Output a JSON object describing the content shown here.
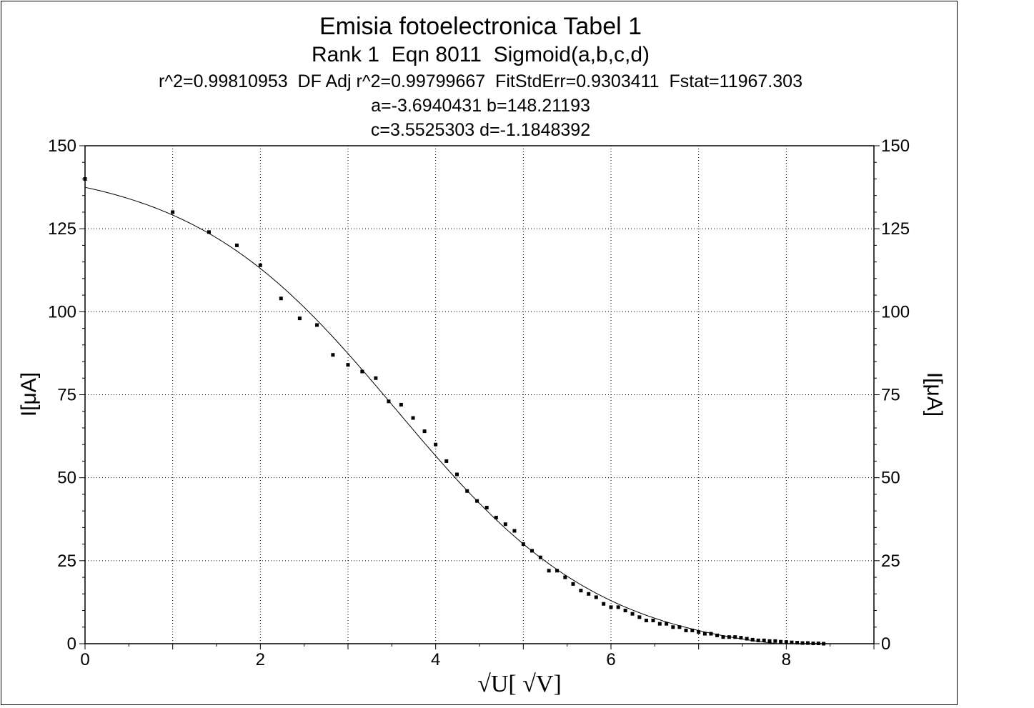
{
  "chart_data": {
    "type": "scatter",
    "title": "Emisia fotoelectronica Tabel 1",
    "subtitle": "Rank 1  Eqn 8011  Sigmoid(a,b,c,d)",
    "stats_line": "r^2=0.99810953  DF Adj r^2=0.99799667  FitStdErr=0.9303411  Fstat=11967.303",
    "params_line_1": "a=-3.6940431 b=148.21193",
    "params_line_2": "c=3.5525303 d=-1.1848392",
    "xlabel": "√U[ √V]",
    "ylabel": "I[μA]",
    "ylabel_right": "I[μA]",
    "xlim": [
      0,
      9
    ],
    "ylim": [
      0,
      150
    ],
    "x_ticks": [
      0,
      2,
      4,
      6,
      8
    ],
    "x_tick_labels": [
      "0",
      "2",
      "4",
      "6",
      "8"
    ],
    "y_ticks": [
      0,
      25,
      50,
      75,
      100,
      125,
      150
    ],
    "y_tick_labels": [
      "0",
      "25",
      "50",
      "75",
      "100",
      "125",
      "150"
    ],
    "grid": true,
    "fit": {
      "equation": "sigmoid",
      "a": -3.6940431,
      "b": 148.21193,
      "c": 3.5525303,
      "d": -1.1848392
    },
    "points": {
      "x": [
        0,
        1,
        1.414,
        1.732,
        2,
        2.236,
        2.449,
        2.646,
        2.828,
        3,
        3.162,
        3.317,
        3.464,
        3.606,
        3.742,
        3.873,
        4,
        4.123,
        4.243,
        4.359,
        4.472,
        4.583,
        4.69,
        4.796,
        4.899,
        5,
        5.099,
        5.196,
        5.292,
        5.385,
        5.477,
        5.568,
        5.657,
        5.745,
        5.831,
        5.916,
        6,
        6.083,
        6.164,
        6.245,
        6.325,
        6.403,
        6.481,
        6.557,
        6.633,
        6.708,
        6.782,
        6.856,
        6.928,
        7,
        7.071,
        7.141,
        7.211,
        7.28,
        7.348,
        7.416,
        7.483,
        7.55,
        7.616,
        7.681,
        7.746,
        7.81,
        7.874,
        7.937,
        8,
        8.062,
        8.124,
        8.185,
        8.246,
        8.307,
        8.367,
        8.426
      ],
      "y": [
        140,
        130,
        124,
        120,
        114,
        104,
        98,
        96,
        87,
        84,
        82,
        80,
        73,
        72,
        68,
        64,
        60,
        55,
        51,
        46,
        43,
        41,
        38,
        36,
        34,
        30,
        28,
        26,
        22,
        22,
        20,
        18,
        16,
        15,
        14,
        12,
        11,
        11,
        10,
        9,
        8,
        7,
        7,
        6,
        6,
        5,
        5,
        4,
        4,
        3.5,
        3,
        3,
        2.5,
        2,
        2,
        2,
        1.8,
        1.5,
        1.2,
        1,
        1,
        0.8,
        0.8,
        0.6,
        0.5,
        0.4,
        0.3,
        0.2,
        0.2,
        0.1,
        0.1,
        0
      ]
    }
  }
}
